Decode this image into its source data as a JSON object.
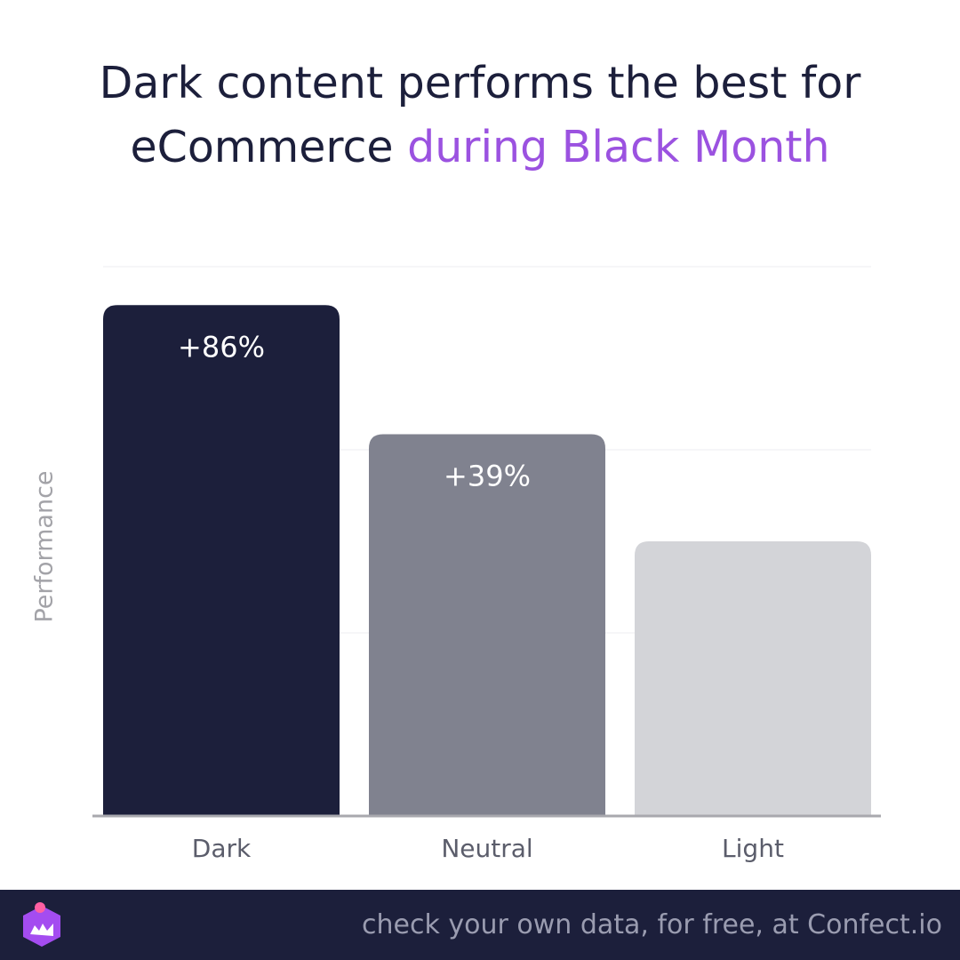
{
  "title": {
    "line1": "Dark content performs the best for",
    "line2_plain": "eCommerce",
    "line2_accent": "during Black Month"
  },
  "colors": {
    "title": "#1c1f3b",
    "accent": "#9b52e0",
    "axis_label": "#a3a3a8",
    "footer_bg": "#1c1f3b",
    "footer_text": "#9a9cb0",
    "logo": "#a44cf0"
  },
  "chart_data": {
    "type": "bar",
    "categories": [
      "Dark",
      "Neutral",
      "Light"
    ],
    "values": [
      186,
      139,
      100
    ],
    "data_labels": [
      "+86%",
      "+39%",
      ""
    ],
    "bar_colors": [
      "#1c1f3b",
      "#80828f",
      "#d3d4d8"
    ],
    "xlabel": "",
    "ylabel": "Performance",
    "ylim": [
      0,
      200
    ],
    "grid": true,
    "legend": "none"
  },
  "footer": {
    "text": "check your own data, for free, at Confect.io",
    "logo_icon": "confect-logo-icon"
  }
}
